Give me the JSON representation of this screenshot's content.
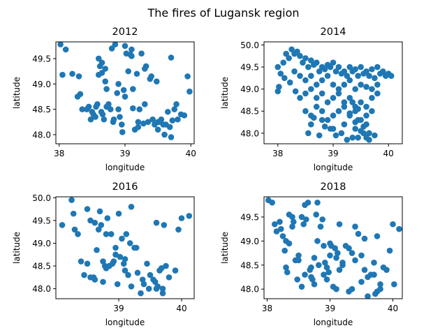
{
  "figure": {
    "title": "The fires of Lugansk region",
    "marker_color": "#1f77b4"
  },
  "chart_data": [
    {
      "type": "scatter",
      "title": "2012",
      "xlabel": "longitude",
      "ylabel": "latitude",
      "xlim": [
        37.95,
        40.05
      ],
      "ylim": [
        47.82,
        49.83
      ],
      "xticks": [
        38,
        39,
        40
      ],
      "xtick_labels": [
        "38",
        "39",
        "40"
      ],
      "yticks": [
        48.0,
        48.5,
        49.0,
        49.5
      ],
      "ytick_labels": [
        "48.0",
        "48.5",
        "49.0",
        "49.5"
      ],
      "x": [
        38.02,
        38.1,
        38.05,
        38.2,
        38.32,
        38.28,
        38.3,
        38.45,
        38.5,
        38.55,
        38.6,
        38.62,
        38.65,
        38.7,
        38.72,
        38.8,
        38.85,
        38.9,
        38.95,
        39.0,
        39.02,
        39.05,
        39.1,
        39.15,
        39.2,
        39.25,
        39.3,
        39.35,
        39.4,
        39.45,
        39.5,
        39.55,
        39.6,
        39.62,
        39.65,
        39.7,
        39.75,
        39.8,
        39.85,
        39.9,
        39.95,
        39.98,
        38.42,
        38.48,
        38.52,
        38.58,
        38.6,
        38.66,
        38.68,
        38.75,
        38.78,
        38.82,
        38.88,
        38.92,
        38.96,
        39.08,
        39.12,
        39.18,
        39.22,
        39.28,
        39.32,
        39.38,
        39.42,
        39.48,
        39.52,
        39.58,
        39.68,
        39.72,
        39.78,
        39.12,
        39.3,
        38.56,
        38.64,
        38.35,
        38.65,
        38.72,
        38.9,
        38.98,
        39.0,
        39.1,
        39.2,
        39.5,
        39.7,
        38.7,
        38.83
      ],
      "y": [
        49.78,
        49.68,
        49.18,
        49.2,
        48.8,
        48.75,
        49.15,
        48.55,
        48.45,
        48.35,
        49.5,
        49.35,
        49.42,
        49.3,
        48.55,
        49.7,
        49.78,
        48.5,
        48.2,
        49.75,
        49.6,
        49.25,
        49.68,
        48.1,
        48.15,
        49.6,
        49.3,
        48.25,
        49.15,
        48.2,
        48.25,
        48.3,
        48.0,
        48.2,
        48.45,
        49.52,
        48.5,
        48.3,
        48.4,
        48.38,
        49.15,
        48.85,
        48.5,
        48.3,
        48.4,
        48.6,
        49.18,
        48.4,
        48.3,
        48.6,
        48.5,
        48.25,
        48.82,
        48.35,
        48.05,
        49.58,
        48.52,
        49.2,
        48.5,
        48.22,
        49.35,
        49.1,
        48.3,
        49.05,
        48.25,
        48.2,
        48.15,
        48.28,
        48.6,
        48.9,
        48.6,
        48.55,
        48.45,
        48.5,
        49.22,
        48.9,
        49.0,
        48.88,
        48.75,
        49.55,
        48.25,
        48.1,
        47.95,
        49.05,
        48.3
      ]
    },
    {
      "type": "scatter",
      "title": "2014",
      "xlabel": "longitude",
      "ylabel": "latitude",
      "xlim": [
        37.75,
        40.25
      ],
      "ylim": [
        47.76,
        50.07
      ],
      "xticks": [
        38,
        39,
        40
      ],
      "xtick_labels": [
        "38",
        "39",
        "40"
      ],
      "yticks": [
        48.0,
        48.5,
        49.0,
        49.5,
        50.0
      ],
      "ytick_labels": [
        "48.0",
        "48.5",
        "49.0",
        "49.5",
        "50.0"
      ],
      "x": [
        38.0,
        38.1,
        38.2,
        38.3,
        38.4,
        38.5,
        38.6,
        38.7,
        38.8,
        38.9,
        39.0,
        39.1,
        39.2,
        39.3,
        39.4,
        39.5,
        39.6,
        39.7,
        39.8,
        39.9,
        40.0,
        40.05,
        38.05,
        38.15,
        38.25,
        38.35,
        38.45,
        38.55,
        38.65,
        38.75,
        38.85,
        38.95,
        39.05,
        39.15,
        39.25,
        39.35,
        39.45,
        39.55,
        39.65,
        39.75,
        39.85,
        39.95,
        38.3,
        38.4,
        38.5,
        38.6,
        38.7,
        38.8,
        38.9,
        39.0,
        39.1,
        39.2,
        39.3,
        39.4,
        39.5,
        39.6,
        39.7,
        39.8,
        38.4,
        38.5,
        38.6,
        38.7,
        38.8,
        38.9,
        39.0,
        39.1,
        39.2,
        39.3,
        39.4,
        39.5,
        39.6,
        39.7,
        39.8,
        38.5,
        38.6,
        38.7,
        38.8,
        38.9,
        39.0,
        39.1,
        39.2,
        39.3,
        39.4,
        39.5,
        39.6,
        39.7,
        38.6,
        38.8,
        39.0,
        39.2,
        39.4,
        39.6,
        38.55,
        38.75,
        38.95,
        39.15,
        39.35,
        39.55,
        39.75,
        38.65,
        38.85,
        39.05,
        39.25,
        39.45,
        39.65,
        39.3,
        39.4,
        39.5,
        39.6,
        39.45,
        39.55,
        39.65,
        38.02,
        38.12,
        38.22,
        38.32,
        39.35,
        39.45,
        38.0
      ],
      "y": [
        49.5,
        49.6,
        49.7,
        49.8,
        49.75,
        49.7,
        49.65,
        49.6,
        49.5,
        49.55,
        49.6,
        49.5,
        49.4,
        49.5,
        49.45,
        49.5,
        49.4,
        49.45,
        49.5,
        49.4,
        49.35,
        49.3,
        49.35,
        49.8,
        49.9,
        49.85,
        49.6,
        49.5,
        49.55,
        49.4,
        49.45,
        49.5,
        49.4,
        49.35,
        49.3,
        49.4,
        49.3,
        49.35,
        49.3,
        49.25,
        49.35,
        49.3,
        49.4,
        49.3,
        49.2,
        49.3,
        49.1,
        49.2,
        49.3,
        49.1,
        49.0,
        49.1,
        49.2,
        49.0,
        49.1,
        49.05,
        49.0,
        49.1,
        48.8,
        48.9,
        49.0,
        48.8,
        48.9,
        48.7,
        48.8,
        48.9,
        48.7,
        48.8,
        48.6,
        48.7,
        48.6,
        48.8,
        48.9,
        48.5,
        48.4,
        48.6,
        48.5,
        48.3,
        48.4,
        48.5,
        48.6,
        48.4,
        48.5,
        48.3,
        48.4,
        48.5,
        48.2,
        48.3,
        48.1,
        48.2,
        48.1,
        48.2,
        48.0,
        47.95,
        48.1,
        48.0,
        47.9,
        48.0,
        47.95,
        48.35,
        48.15,
        47.95,
        47.85,
        47.9,
        47.85,
        48.45,
        48.25,
        48.05,
        47.9,
        48.3,
        48.15,
        48.0,
        49.05,
        49.25,
        49.15,
        48.95,
        48.7,
        48.55,
        48.95
      ]
    },
    {
      "type": "scatter",
      "title": "2016",
      "xlabel": "longitude",
      "ylabel": "latitude",
      "xlim": [
        38.0,
        40.2
      ],
      "ylim": [
        47.78,
        50.02
      ],
      "xticks": [
        39,
        40
      ],
      "xtick_labels": [
        "39",
        "40"
      ],
      "yticks": [
        48.0,
        48.5,
        49.0,
        49.5,
        50.0
      ],
      "ytick_labels": [
        "48.0",
        "48.5",
        "49.0",
        "49.5",
        "50.0"
      ],
      "x": [
        38.1,
        38.25,
        38.3,
        38.28,
        38.35,
        38.4,
        38.45,
        38.5,
        38.55,
        38.6,
        38.62,
        38.65,
        38.68,
        38.7,
        38.72,
        38.75,
        38.8,
        38.82,
        38.85,
        38.88,
        38.9,
        38.95,
        39.0,
        39.02,
        39.05,
        39.1,
        39.12,
        39.15,
        39.2,
        39.25,
        39.3,
        39.35,
        39.4,
        39.45,
        39.5,
        39.55,
        39.6,
        39.62,
        39.65,
        39.7,
        39.72,
        39.75,
        39.8,
        39.9,
        39.95,
        40.0,
        40.12,
        38.5,
        38.55,
        38.62,
        38.75,
        38.78,
        38.92,
        38.98,
        39.08,
        39.18,
        39.28,
        39.38,
        39.48,
        39.58,
        39.68,
        39.7,
        39.6,
        39.2,
        39.1,
        38.95,
        38.8
      ],
      "y": [
        49.4,
        49.95,
        49.3,
        49.65,
        49.2,
        48.6,
        48.3,
        49.75,
        49.5,
        48.25,
        49.45,
        48.85,
        49.3,
        49.7,
        49.4,
        48.6,
        48.45,
        49.55,
        48.5,
        49.2,
        48.55,
        48.75,
        49.65,
        48.7,
        49.1,
        48.4,
        49.2,
        48.3,
        49.8,
        48.9,
        48.35,
        47.9,
        48.1,
        48.55,
        48.3,
        48.2,
        49.45,
        48.05,
        48.4,
        48.0,
        49.4,
        48.5,
        48.25,
        48.4,
        49.3,
        49.55,
        49.6,
        48.55,
        48.25,
        48.2,
        48.15,
        48.5,
        48.6,
        48.1,
        48.55,
        49.0,
        48.9,
        48.2,
        48.0,
        48.15,
        48.45,
        47.9,
        48.0,
        48.05,
        48.65,
        48.9,
        49.2
      ],
      "y_extra": []
    },
    {
      "type": "scatter",
      "title": "2018",
      "xlabel": "longitude",
      "ylabel": "latitude",
      "xlim": [
        37.95,
        40.15
      ],
      "ylim": [
        47.8,
        49.92
      ],
      "xticks": [
        38,
        39,
        40
      ],
      "xtick_labels": [
        "38",
        "39",
        "40"
      ],
      "yticks": [
        48.0,
        48.5,
        49.0,
        49.5
      ],
      "ytick_labels": [
        "48.0",
        "48.5",
        "49.0",
        "49.5"
      ],
      "x": [
        38.02,
        38.08,
        38.12,
        38.15,
        38.2,
        38.22,
        38.25,
        38.28,
        38.3,
        38.32,
        38.35,
        38.4,
        38.42,
        38.45,
        38.48,
        38.5,
        38.55,
        38.58,
        38.6,
        38.62,
        38.65,
        38.68,
        38.7,
        38.72,
        38.75,
        38.78,
        38.8,
        38.82,
        38.85,
        38.88,
        38.9,
        38.92,
        38.95,
        38.98,
        39.0,
        39.02,
        39.05,
        39.08,
        39.1,
        39.12,
        39.15,
        39.2,
        39.25,
        39.3,
        39.35,
        39.4,
        39.45,
        39.5,
        39.55,
        39.6,
        39.65,
        39.7,
        39.72,
        39.75,
        39.8,
        39.85,
        39.9,
        39.95,
        40.0,
        40.02,
        40.1,
        38.3,
        38.4,
        38.5,
        38.6,
        38.7,
        38.8,
        38.9,
        39.0,
        39.1,
        39.2,
        39.3,
        39.4,
        39.5,
        39.6,
        39.7,
        39.8,
        38.35,
        38.55,
        38.75,
        38.95,
        39.15,
        39.35,
        39.55,
        39.75
      ],
      "y": [
        49.85,
        49.8,
        49.35,
        49.2,
        49.4,
        49.25,
        49.1,
        48.8,
        48.45,
        48.35,
        48.95,
        49.3,
        49.4,
        48.6,
        48.2,
        48.7,
        49.5,
        49.35,
        49.75,
        49.45,
        49.8,
        48.4,
        48.45,
        48.2,
        48.65,
        49.55,
        49.8,
        48.5,
        49.3,
        49.45,
        48.3,
        48.55,
        48.2,
        48.35,
        48.95,
        48.9,
        48.05,
        48.85,
        48.0,
        48.75,
        49.35,
        48.5,
        48.9,
        47.95,
        48.0,
        49.3,
        49.15,
        48.15,
        48.4,
        47.85,
        48.3,
        48.3,
        47.9,
        47.95,
        48.0,
        48.45,
        48.4,
        48.8,
        49.35,
        48.1,
        49.25,
        49.0,
        49.5,
        48.6,
        48.3,
        48.25,
        49.0,
        48.9,
        48.7,
        48.65,
        48.55,
        48.85,
        48.6,
        48.7,
        48.25,
        48.55,
        48.1,
        49.55,
        48.05,
        48.1,
        48.45,
        48.4,
        48.75,
        49.05,
        49.1
      ],
      "y_extra": []
    }
  ]
}
